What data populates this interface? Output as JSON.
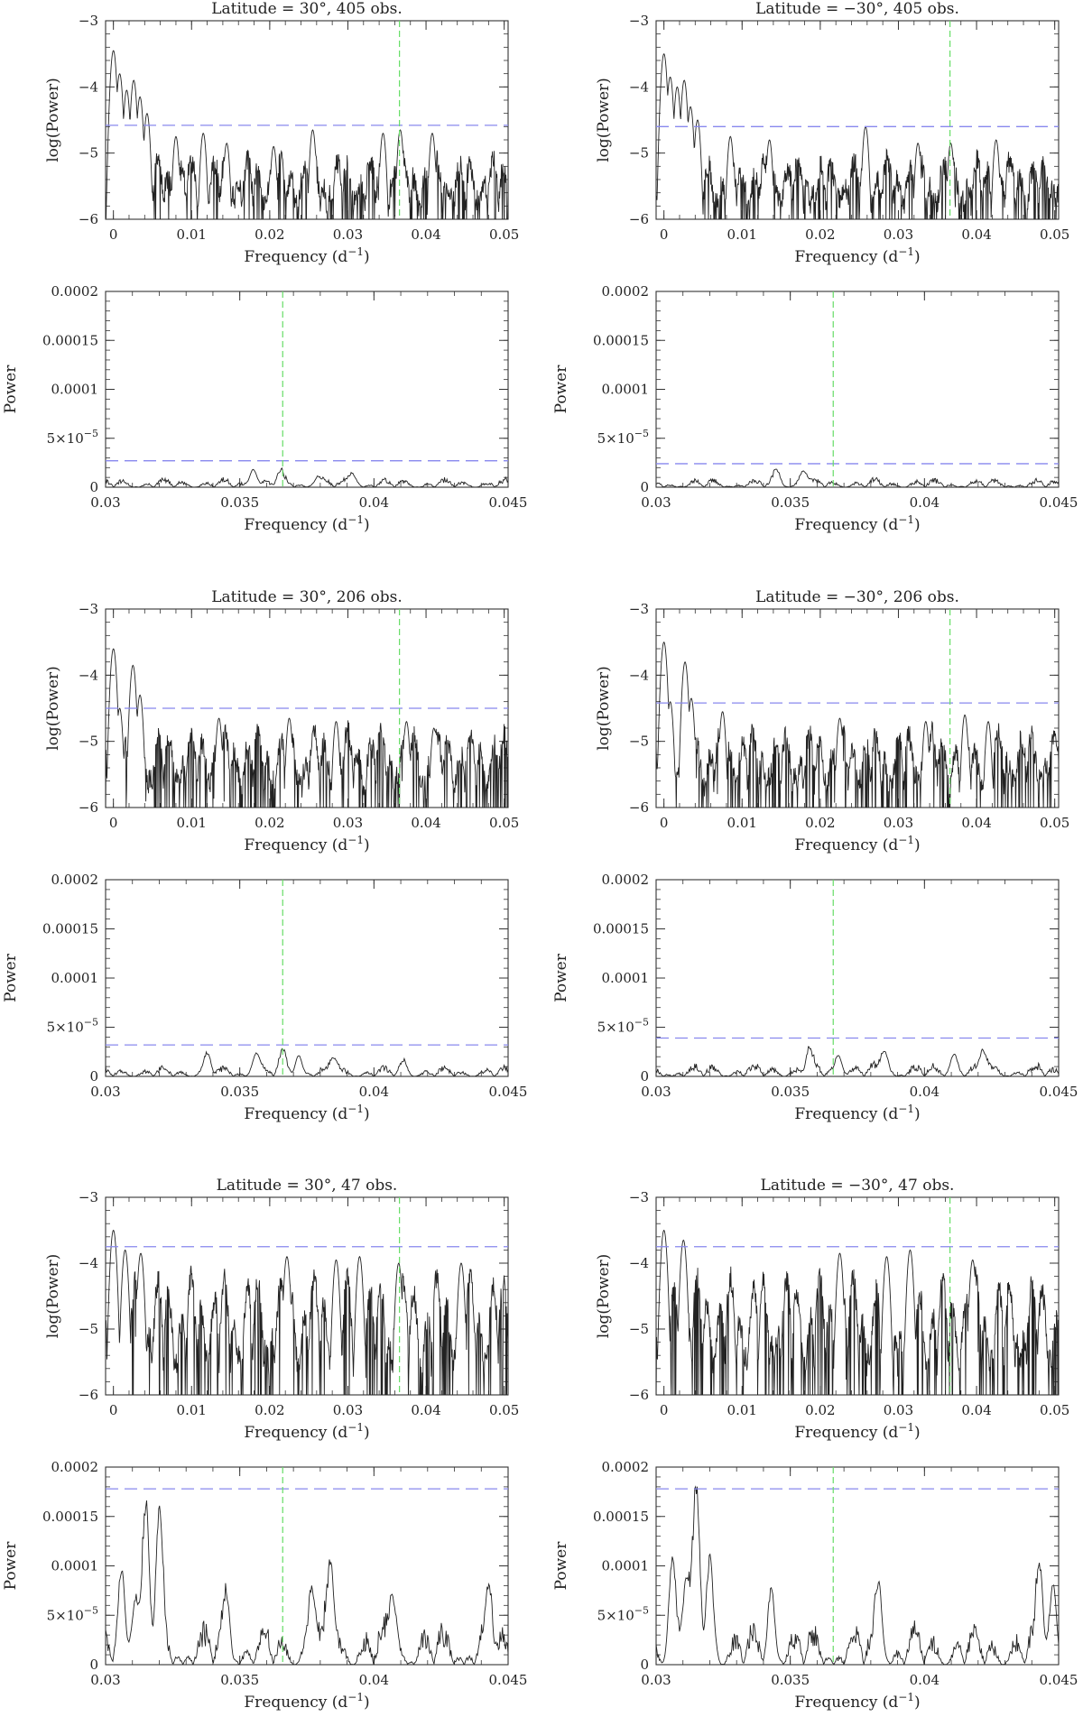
{
  "colors": {
    "frame": "#333333",
    "trace": "#222222",
    "threshold": "#8888ee",
    "marker": "#66dd66"
  },
  "marker_frequency": 0.0366,
  "chart_data": [
    {
      "type": "line",
      "kind": "log",
      "title": "Latitude = 30°, 405 obs.",
      "xlabel": "Frequency (d",
      "xlabel_sup": "−1",
      "xlabel_end": ")",
      "ylabel": "log(Power)",
      "xlim": [
        -0.001,
        0.0505
      ],
      "ylim": [
        -6,
        -3
      ],
      "xticks": [
        0,
        0.01,
        0.02,
        0.03,
        0.04,
        0.05
      ],
      "xtick_labels": [
        "0",
        "0.01",
        "0.02",
        "0.03",
        "0.04",
        "0.05"
      ],
      "yticks": [
        -6,
        -5,
        -4,
        -3
      ],
      "ytick_labels": [
        "−6",
        "−5",
        "−4",
        "−3"
      ],
      "threshold": -4.58,
      "peaks": [
        [
          0,
          -3.45
        ],
        [
          0.0008,
          -3.8
        ],
        [
          0.0017,
          -4.05
        ],
        [
          0.0026,
          -3.9
        ],
        [
          0.0034,
          -4.15
        ],
        [
          0.0043,
          -4.4
        ],
        [
          0.008,
          -4.75
        ],
        [
          0.0115,
          -4.7
        ],
        [
          0.0145,
          -4.85
        ],
        [
          0.0205,
          -4.9
        ],
        [
          0.0255,
          -4.65
        ],
        [
          0.0345,
          -4.7
        ],
        [
          0.0367,
          -4.65
        ],
        [
          0.0408,
          -4.7
        ]
      ],
      "baseline": [
        -5.8,
        -5.1
      ],
      "seed": 11
    },
    {
      "type": "line",
      "kind": "log",
      "title": "Latitude = −30°, 405 obs.",
      "xlabel": "Frequency (d",
      "xlabel_sup": "−1",
      "xlabel_end": ")",
      "ylabel": "log(Power)",
      "xlim": [
        -0.001,
        0.0505
      ],
      "ylim": [
        -6,
        -3
      ],
      "xticks": [
        0,
        0.01,
        0.02,
        0.03,
        0.04,
        0.05
      ],
      "xtick_labels": [
        "0",
        "0.01",
        "0.02",
        "0.03",
        "0.04",
        "0.05"
      ],
      "yticks": [
        -6,
        -5,
        -4,
        -3
      ],
      "ytick_labels": [
        "−6",
        "−5",
        "−4",
        "−3"
      ],
      "threshold": -4.6,
      "peaks": [
        [
          0,
          -3.5
        ],
        [
          0.0008,
          -3.85
        ],
        [
          0.0017,
          -4.0
        ],
        [
          0.0026,
          -3.9
        ],
        [
          0.0034,
          -4.3
        ],
        [
          0.0043,
          -4.5
        ],
        [
          0.0085,
          -4.75
        ],
        [
          0.0135,
          -4.8
        ],
        [
          0.0258,
          -4.6
        ],
        [
          0.0325,
          -4.85
        ],
        [
          0.0367,
          -4.85
        ],
        [
          0.0425,
          -4.8
        ]
      ],
      "baseline": [
        -5.8,
        -5.1
      ],
      "seed": 23
    },
    {
      "type": "line",
      "kind": "linear",
      "title": "",
      "xlabel": "Frequency (d",
      "xlabel_sup": "−1",
      "xlabel_end": ")",
      "ylabel": "Power",
      "xlim": [
        0.03,
        0.045
      ],
      "ylim": [
        0,
        0.0002
      ],
      "xticks": [
        0.03,
        0.035,
        0.04,
        0.045
      ],
      "xtick_labels": [
        "0.03",
        "0.035",
        "0.04",
        "0.045"
      ],
      "yticks": [
        0,
        5e-05,
        0.0001,
        0.00015,
        0.0002
      ],
      "ytick_labels": [
        "0",
        "5×10",
        "0.0001",
        "0.00015",
        "0.0002"
      ],
      "ytick_sup": "−5",
      "threshold": 2.7e-05,
      "peaks": [
        [
          0.0355,
          1.8e-05
        ],
        [
          0.0365,
          1.2e-05
        ],
        [
          0.0379,
          9e-06
        ],
        [
          0.0392,
          1.3e-05
        ]
      ],
      "amp": 1.05e-05,
      "seed": 31
    },
    {
      "type": "line",
      "kind": "linear",
      "title": "",
      "xlabel": "Frequency (d",
      "xlabel_sup": "−1",
      "xlabel_end": ")",
      "ylabel": "Power",
      "xlim": [
        0.03,
        0.045
      ],
      "ylim": [
        0,
        0.0002
      ],
      "xticks": [
        0.03,
        0.035,
        0.04,
        0.045
      ],
      "xtick_labels": [
        "0.03",
        "0.035",
        "0.04",
        "0.045"
      ],
      "yticks": [
        0,
        5e-05,
        0.0001,
        0.00015,
        0.0002
      ],
      "ytick_labels": [
        "0",
        "5×10",
        "0.0001",
        "0.00015",
        "0.0002"
      ],
      "ytick_sup": "−5",
      "threshold": 2.4e-05,
      "peaks": [
        [
          0.0345,
          1.4e-05
        ],
        [
          0.0355,
          1.6e-05
        ]
      ],
      "amp": 1.05e-05,
      "seed": 37
    },
    {
      "type": "line",
      "kind": "log",
      "title": "Latitude = 30°, 206 obs.",
      "xlabel": "Frequency (d",
      "xlabel_sup": "−1",
      "xlabel_end": ")",
      "ylabel": "log(Power)",
      "xlim": [
        -0.001,
        0.0505
      ],
      "ylim": [
        -6,
        -3
      ],
      "xticks": [
        0,
        0.01,
        0.02,
        0.03,
        0.04,
        0.05
      ],
      "xtick_labels": [
        "0",
        "0.01",
        "0.02",
        "0.03",
        "0.04",
        "0.05"
      ],
      "yticks": [
        -6,
        -5,
        -4,
        -3
      ],
      "ytick_labels": [
        "−6",
        "−5",
        "−4",
        "−3"
      ],
      "threshold": -4.5,
      "peaks": [
        [
          0,
          -3.6
        ],
        [
          0.0008,
          -4.5
        ],
        [
          0.0025,
          -3.85
        ],
        [
          0.0034,
          -4.3
        ],
        [
          0.0135,
          -4.65
        ],
        [
          0.0225,
          -4.65
        ],
        [
          0.0285,
          -4.7
        ],
        [
          0.0375,
          -4.7
        ],
        [
          0.041,
          -4.8
        ]
      ],
      "baseline": [
        -5.7,
        -4.85
      ],
      "seed": 43
    },
    {
      "type": "line",
      "kind": "log",
      "title": "Latitude = −30°, 206 obs.",
      "xlabel": "Frequency (d",
      "xlabel_sup": "−1",
      "xlabel_end": ")",
      "ylabel": "log(Power)",
      "xlim": [
        -0.001,
        0.0505
      ],
      "ylim": [
        -6,
        -3
      ],
      "xticks": [
        0,
        0.01,
        0.02,
        0.03,
        0.04,
        0.05
      ],
      "xtick_labels": [
        "0",
        "0.01",
        "0.02",
        "0.03",
        "0.04",
        "0.05"
      ],
      "yticks": [
        -6,
        -5,
        -4,
        -3
      ],
      "ytick_labels": [
        "−6",
        "−5",
        "−4",
        "−3"
      ],
      "threshold": -4.42,
      "peaks": [
        [
          0,
          -3.5
        ],
        [
          0.0008,
          -4.4
        ],
        [
          0.0027,
          -3.8
        ],
        [
          0.0035,
          -4.35
        ],
        [
          0.0075,
          -4.55
        ],
        [
          0.0225,
          -4.65
        ],
        [
          0.0335,
          -4.7
        ],
        [
          0.0385,
          -4.6
        ],
        [
          0.0415,
          -4.7
        ]
      ],
      "baseline": [
        -5.7,
        -4.85
      ],
      "seed": 53
    },
    {
      "type": "line",
      "kind": "linear",
      "title": "",
      "xlabel": "Frequency (d",
      "xlabel_sup": "−1",
      "xlabel_end": ")",
      "ylabel": "Power",
      "xlim": [
        0.03,
        0.045
      ],
      "ylim": [
        0,
        0.0002
      ],
      "xticks": [
        0.03,
        0.035,
        0.04,
        0.045
      ],
      "xtick_labels": [
        "0.03",
        "0.035",
        "0.04",
        "0.045"
      ],
      "yticks": [
        0,
        5e-05,
        0.0001,
        0.00015,
        0.0002
      ],
      "ytick_labels": [
        "0",
        "5×10",
        "0.0001",
        "0.00015",
        "0.0002"
      ],
      "ytick_sup": "−5",
      "threshold": 3.2e-05,
      "peaks": [
        [
          0.0338,
          1.9e-05
        ],
        [
          0.0356,
          2.2e-05
        ],
        [
          0.0366,
          2e-05
        ],
        [
          0.0372,
          2e-05
        ],
        [
          0.0385,
          1.8e-05
        ],
        [
          0.0411,
          1.2e-05
        ]
      ],
      "amp": 1.2e-05,
      "seed": 61
    },
    {
      "type": "line",
      "kind": "linear",
      "title": "",
      "xlabel": "Frequency (d",
      "xlabel_sup": "−1",
      "xlabel_end": ")",
      "ylabel": "Power",
      "xlim": [
        0.03,
        0.045
      ],
      "ylim": [
        0,
        0.0002
      ],
      "xticks": [
        0.03,
        0.035,
        0.04,
        0.045
      ],
      "xtick_labels": [
        "0.03",
        "0.035",
        "0.04",
        "0.045"
      ],
      "yticks": [
        0,
        5e-05,
        0.0001,
        0.00015,
        0.0002
      ],
      "ytick_labels": [
        "0",
        "5×10",
        "0.0001",
        "0.00015",
        "0.0002"
      ],
      "ytick_sup": "−5",
      "threshold": 3.9e-05,
      "peaks": [
        [
          0.0357,
          2.2e-05
        ],
        [
          0.0368,
          2e-05
        ],
        [
          0.0385,
          2.5e-05
        ],
        [
          0.0411,
          2.2e-05
        ],
        [
          0.0422,
          2.4e-05
        ]
      ],
      "amp": 1.6e-05,
      "seed": 67
    },
    {
      "type": "line",
      "kind": "log",
      "title": "Latitude = 30°, 47 obs.",
      "xlabel": "Frequency (d",
      "xlabel_sup": "−1",
      "xlabel_end": ")",
      "ylabel": "log(Power)",
      "xlim": [
        -0.001,
        0.0505
      ],
      "ylim": [
        -6,
        -3
      ],
      "xticks": [
        0,
        0.01,
        0.02,
        0.03,
        0.04,
        0.05
      ],
      "xtick_labels": [
        "0",
        "0.01",
        "0.02",
        "0.03",
        "0.04",
        "0.05"
      ],
      "yticks": [
        -6,
        -5,
        -4,
        -3
      ],
      "ytick_labels": [
        "−6",
        "−5",
        "−4",
        "−3"
      ],
      "threshold": -3.75,
      "peaks": [
        [
          0,
          -3.5
        ],
        [
          0.0015,
          -3.8
        ],
        [
          0.0035,
          -3.85
        ],
        [
          0.0222,
          -3.9
        ],
        [
          0.0285,
          -3.95
        ],
        [
          0.0315,
          -3.9
        ],
        [
          0.0365,
          -4.0
        ],
        [
          0.0445,
          -4.0
        ]
      ],
      "baseline": [
        -5.6,
        -4.2
      ],
      "seed": 71
    },
    {
      "type": "line",
      "kind": "log",
      "title": "Latitude = −30°, 47 obs.",
      "xlabel": "Frequency (d",
      "xlabel_sup": "−1",
      "xlabel_end": ")",
      "ylabel": "log(Power)",
      "xlim": [
        -0.001,
        0.0505
      ],
      "ylim": [
        -6,
        -3
      ],
      "xticks": [
        0,
        0.01,
        0.02,
        0.03,
        0.04,
        0.05
      ],
      "xtick_labels": [
        "0",
        "0.01",
        "0.02",
        "0.03",
        "0.04",
        "0.05"
      ],
      "yticks": [
        -6,
        -5,
        -4,
        -3
      ],
      "ytick_labels": [
        "−6",
        "−5",
        "−4",
        "−3"
      ],
      "threshold": -3.75,
      "peaks": [
        [
          0,
          -3.5
        ],
        [
          0.0025,
          -3.65
        ],
        [
          0.0315,
          -3.8
        ],
        [
          0.0225,
          -3.85
        ],
        [
          0.0285,
          -3.9
        ],
        [
          0.0395,
          -3.95
        ]
      ],
      "baseline": [
        -5.6,
        -4.2
      ],
      "seed": 79
    },
    {
      "type": "line",
      "kind": "linear",
      "title": "",
      "xlabel": "Frequency (d",
      "xlabel_sup": "−1",
      "xlabel_end": ")",
      "ylabel": "Power",
      "xlim": [
        0.03,
        0.045
      ],
      "ylim": [
        0,
        0.0002
      ],
      "xticks": [
        0.03,
        0.035,
        0.04,
        0.045
      ],
      "xtick_labels": [
        "0.03",
        "0.035",
        "0.04",
        "0.045"
      ],
      "yticks": [
        0,
        5e-05,
        0.0001,
        0.00015,
        0.0002
      ],
      "ytick_labels": [
        "0",
        "5×10",
        "0.0001",
        "0.00015",
        "0.0002"
      ],
      "ytick_sup": "−5",
      "threshold": 0.000178,
      "peaks": [
        [
          0.0306,
          8.7e-05
        ],
        [
          0.0315,
          0.000136
        ],
        [
          0.032,
          0.000125
        ],
        [
          0.0311,
          6e-05
        ],
        [
          0.0345,
          5.5e-05
        ],
        [
          0.0384,
          9.2e-05
        ],
        [
          0.0377,
          7.2e-05
        ],
        [
          0.0407,
          6.5e-05
        ],
        [
          0.0443,
          6e-05
        ]
      ],
      "amp": 5e-05,
      "seed": 83
    },
    {
      "type": "line",
      "kind": "linear",
      "title": "",
      "xlabel": "Frequency (d",
      "xlabel_sup": "−1",
      "xlabel_end": ")",
      "ylabel": "Power",
      "xlim": [
        0.03,
        0.045
      ],
      "ylim": [
        0,
        0.0002
      ],
      "xticks": [
        0.03,
        0.035,
        0.04,
        0.045
      ],
      "xtick_labels": [
        "0.03",
        "0.035",
        "0.04",
        "0.045"
      ],
      "yticks": [
        0,
        5e-05,
        0.0001,
        0.00015,
        0.0002
      ],
      "ytick_labels": [
        "0",
        "5×10",
        "0.0001",
        "0.00015",
        "0.0002"
      ],
      "ytick_sup": "−5",
      "threshold": 0.000178,
      "peaks": [
        [
          0.0306,
          9.5e-05
        ],
        [
          0.0315,
          0.000155
        ],
        [
          0.032,
          9e-05
        ],
        [
          0.0311,
          7.5e-05
        ],
        [
          0.0343,
          6.5e-05
        ],
        [
          0.0383,
          7e-05
        ],
        [
          0.0443,
          8e-05
        ],
        [
          0.0448,
          7e-05
        ]
      ],
      "amp": 4.8e-05,
      "seed": 89
    }
  ]
}
